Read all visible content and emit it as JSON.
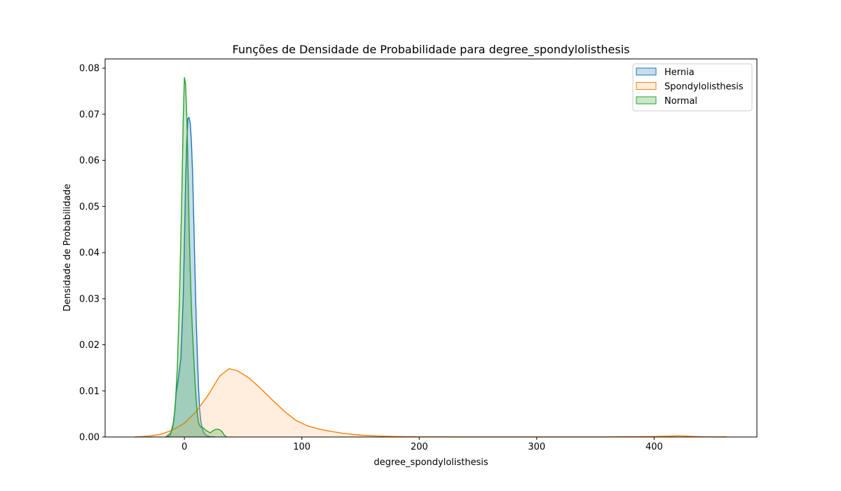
{
  "chart_data": {
    "type": "area",
    "title": "Funções de Densidade de Probabilidade para degree_spondylolisthesis",
    "xlabel": "degree_spondylolisthesis",
    "ylabel": "Densidade de Probabilidade",
    "xlim": [
      -67.5,
      487.5
    ],
    "ylim": [
      0,
      0.082
    ],
    "xticks": [
      0,
      100,
      200,
      300,
      400
    ],
    "xtick_labels": [
      "0",
      "100",
      "200",
      "300",
      "400"
    ],
    "yticks": [
      0,
      0.01,
      0.02,
      0.03,
      0.04,
      0.05,
      0.06,
      0.07,
      0.08
    ],
    "ytick_labels": [
      "0.00",
      "0.01",
      "0.02",
      "0.03",
      "0.04",
      "0.05",
      "0.06",
      "0.07",
      "0.08"
    ],
    "grid": false,
    "legend": "top-right",
    "series": [
      {
        "name": "Hernia",
        "color": "#1f77b4",
        "fill": "#1f77b4",
        "x": [
          -15,
          -12,
          -9,
          -7,
          -5,
          -3,
          -1,
          0,
          1,
          2,
          3,
          4,
          5,
          6,
          7,
          8,
          9,
          10,
          11,
          12,
          13,
          14,
          15,
          16,
          17,
          18,
          19,
          20,
          21,
          23,
          26
        ],
        "y": [
          0,
          0.0004,
          0.0035,
          0.0095,
          0.013,
          0.017,
          0.03,
          0.042,
          0.055,
          0.064,
          0.069,
          0.0693,
          0.068,
          0.064,
          0.057,
          0.047,
          0.036,
          0.026,
          0.018,
          0.011,
          0.006,
          0.0035,
          0.002,
          0.0012,
          0.0008,
          0.0005,
          0.0003,
          0.0002,
          0.0001,
          5e-05,
          0
        ]
      },
      {
        "name": "Spondylolisthesis",
        "color": "#ff7f0e",
        "fill": "#ffbb78",
        "x": [
          -42,
          -30,
          -20,
          -10,
          0,
          10,
          20,
          30,
          38,
          45,
          55,
          65,
          75,
          85,
          95,
          105,
          115,
          125,
          135,
          150,
          165,
          180,
          200,
          250,
          300,
          350,
          400,
          415,
          420,
          425,
          440,
          462
        ],
        "y": [
          0,
          0.0002,
          0.0006,
          0.0015,
          0.003,
          0.0055,
          0.009,
          0.0132,
          0.0148,
          0.0144,
          0.0128,
          0.0105,
          0.008,
          0.0056,
          0.0036,
          0.0024,
          0.0017,
          0.0012,
          0.0008,
          0.0004,
          0.0002,
          0.0001,
          3e-05,
          1e-05,
          1e-05,
          1e-05,
          0.0001,
          0.0002,
          0.00025,
          0.0002,
          5e-05,
          0
        ]
      },
      {
        "name": "Normal",
        "color": "#2ca02c",
        "fill": "#2ca02c",
        "x": [
          -16,
          -12,
          -10,
          -8,
          -6,
          -4,
          -2,
          -1,
          0,
          1,
          2,
          3,
          4,
          5,
          6,
          7,
          8,
          9,
          10,
          11,
          12,
          13,
          14,
          15,
          16,
          18,
          20,
          22,
          24,
          26,
          28,
          30,
          32,
          34,
          36
        ],
        "y": [
          0,
          0.0008,
          0.002,
          0.006,
          0.015,
          0.032,
          0.055,
          0.069,
          0.078,
          0.0765,
          0.07,
          0.059,
          0.046,
          0.036,
          0.028,
          0.022,
          0.017,
          0.012,
          0.008,
          0.005,
          0.0032,
          0.0025,
          0.0022,
          0.0021,
          0.002,
          0.0015,
          0.0012,
          0.0009,
          0.0013,
          0.0016,
          0.0017,
          0.0016,
          0.0012,
          0.0004,
          0
        ]
      }
    ]
  }
}
